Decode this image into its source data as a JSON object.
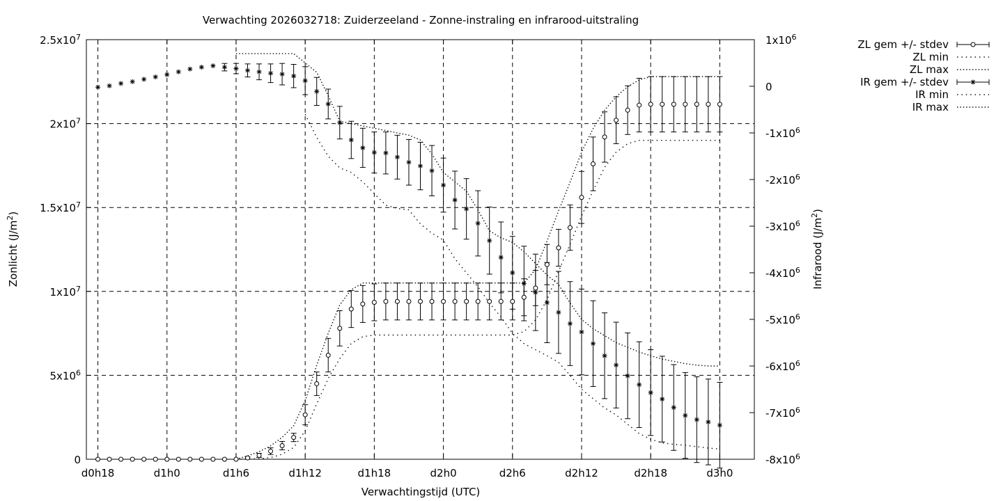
{
  "chart_data": {
    "type": "scatter",
    "title": "Verwachting 2026032718: Zuiderzeeland - Zonne-instraling en infrarood-uitstraling",
    "xlabel": "Verwachtingstijd (UTC)",
    "ylabel_left": {
      "text": "Zonlicht (J/m",
      "sup": "2",
      "tail": ")"
    },
    "ylabel_right": {
      "text": "Infrarood (J/m",
      "sup": "2",
      "tail": ")"
    },
    "x_range_hours": [
      -1,
      57
    ],
    "ylim_left": [
      0,
      25000000
    ],
    "ylim_right": [
      -8000000,
      1000000
    ],
    "grid": true,
    "legend_placement": "outside-top-right",
    "x_ticks": [
      {
        "value": 0,
        "label": "d0h18"
      },
      {
        "value": 6,
        "label": "d1h0"
      },
      {
        "value": 12,
        "label": "d1h6"
      },
      {
        "value": 18,
        "label": "d1h12"
      },
      {
        "value": 24,
        "label": "d1h18"
      },
      {
        "value": 30,
        "label": "d2h0"
      },
      {
        "value": 36,
        "label": "d2h6"
      },
      {
        "value": 42,
        "label": "d2h12"
      },
      {
        "value": 48,
        "label": "d2h18"
      },
      {
        "value": 54,
        "label": "d3h0"
      }
    ],
    "y_ticks_left": [
      {
        "value": 0,
        "mant": "0",
        "exp": ""
      },
      {
        "value": 5000000,
        "mant": "5x10",
        "exp": "6"
      },
      {
        "value": 10000000,
        "mant": "1x10",
        "exp": "7"
      },
      {
        "value": 15000000,
        "mant": "1.5x10",
        "exp": "7"
      },
      {
        "value": 20000000,
        "mant": "2x10",
        "exp": "7"
      },
      {
        "value": 25000000,
        "mant": "2.5x10",
        "exp": "7"
      }
    ],
    "y_ticks_right": [
      {
        "value": 1000000,
        "mant": "1x10",
        "exp": "6"
      },
      {
        "value": 0,
        "mant": "0",
        "exp": ""
      },
      {
        "value": -1000000,
        "mant": "-1x10",
        "exp": "6"
      },
      {
        "value": -2000000,
        "mant": "-2x10",
        "exp": "6"
      },
      {
        "value": -3000000,
        "mant": "-3x10",
        "exp": "6"
      },
      {
        "value": -4000000,
        "mant": "-4x10",
        "exp": "6"
      },
      {
        "value": -5000000,
        "mant": "-5x10",
        "exp": "6"
      },
      {
        "value": -6000000,
        "mant": "-6x10",
        "exp": "6"
      },
      {
        "value": -7000000,
        "mant": "-7x10",
        "exp": "6"
      },
      {
        "value": -8000000,
        "mant": "-8x10",
        "exp": "6"
      }
    ],
    "x": [
      0,
      1,
      2,
      3,
      4,
      5,
      6,
      7,
      8,
      9,
      10,
      11,
      12,
      13,
      14,
      15,
      16,
      17,
      18,
      19,
      20,
      21,
      22,
      23,
      24,
      25,
      26,
      27,
      28,
      29,
      30,
      31,
      32,
      33,
      34,
      35,
      36,
      37,
      38,
      39,
      40,
      41,
      42,
      43,
      44,
      45,
      46,
      47,
      48,
      49,
      50,
      51,
      52,
      53,
      54
    ],
    "series": [
      {
        "name": "ZL gem +/- stdev",
        "axis": "left",
        "marker": "circle",
        "values": [
          0,
          0,
          0,
          0,
          0,
          0,
          0,
          0,
          0,
          0,
          0,
          0,
          0,
          80000,
          230000,
          480000,
          810000,
          1300000,
          2650000,
          4500000,
          6200000,
          7800000,
          8950000,
          9250000,
          9350000,
          9400000,
          9400000,
          9400000,
          9400000,
          9400000,
          9400000,
          9400000,
          9400000,
          9400000,
          9400000,
          9400000,
          9400000,
          9650000,
          10200000,
          11600000,
          12600000,
          13800000,
          15600000,
          17600000,
          19200000,
          20200000,
          20800000,
          21100000,
          21150000,
          21150000,
          21150000,
          21150000,
          21150000,
          21150000,
          21150000
        ],
        "stdev": [
          0,
          0,
          0,
          0,
          0,
          0,
          0,
          0,
          0,
          0,
          0,
          0,
          0,
          60000,
          120000,
          200000,
          250000,
          250000,
          600000,
          700000,
          1000000,
          1050000,
          1100000,
          1100000,
          1100000,
          1100000,
          1100000,
          1100000,
          1100000,
          1100000,
          1100000,
          1100000,
          1100000,
          1100000,
          1100000,
          1100000,
          1100000,
          1100000,
          1050000,
          1200000,
          1100000,
          1350000,
          1550000,
          1600000,
          1500000,
          1400000,
          1450000,
          1600000,
          1650000,
          1650000,
          1650000,
          1650000,
          1650000,
          1650000,
          1650000
        ]
      },
      {
        "name": "ZL min",
        "axis": "left",
        "line": "dotted",
        "values": [
          null,
          null,
          null,
          null,
          null,
          null,
          null,
          null,
          null,
          null,
          null,
          null,
          0,
          10000,
          30000,
          100000,
          300000,
          700000,
          1700000,
          3300000,
          4800000,
          6000000,
          6900000,
          7300000,
          7400000,
          7400000,
          7400000,
          7400000,
          7400000,
          7400000,
          7400000,
          7400000,
          7400000,
          7400000,
          7400000,
          7400000,
          7400000,
          7600000,
          8300000,
          9500000,
          11200000,
          12800000,
          14500000,
          16000000,
          17400000,
          18300000,
          18800000,
          19000000,
          19000000,
          19000000,
          19000000,
          19000000,
          19000000,
          19000000,
          19000000
        ]
      },
      {
        "name": "ZL max",
        "axis": "left",
        "line": "dotted",
        "values": [
          null,
          null,
          null,
          null,
          null,
          null,
          null,
          null,
          null,
          null,
          null,
          null,
          0,
          200000,
          450000,
          800000,
          1300000,
          2000000,
          3500000,
          5600000,
          7500000,
          9200000,
          10100000,
          10500000,
          10500000,
          10500000,
          10500000,
          10500000,
          10500000,
          10500000,
          10500000,
          10500000,
          10500000,
          10500000,
          10500000,
          10500000,
          10500000,
          10500000,
          11300000,
          13000000,
          14800000,
          16500000,
          18300000,
          19700000,
          20800000,
          21600000,
          22200000,
          22600000,
          22800000,
          22800000,
          22800000,
          22800000,
          22800000,
          22800000,
          22800000
        ]
      },
      {
        "name": "IR gem +/- stdev",
        "axis": "right",
        "marker": "asterisk",
        "values": [
          -20000,
          10000,
          60000,
          100000,
          150000,
          200000,
          250000,
          310000,
          370000,
          410000,
          440000,
          410000,
          380000,
          340000,
          310000,
          280000,
          260000,
          220000,
          120000,
          -110000,
          -380000,
          -780000,
          -1150000,
          -1320000,
          -1420000,
          -1430000,
          -1520000,
          -1630000,
          -1710000,
          -1810000,
          -2120000,
          -2440000,
          -2630000,
          -2940000,
          -3310000,
          -3670000,
          -4000000,
          -4230000,
          -4420000,
          -4640000,
          -4850000,
          -5090000,
          -5270000,
          -5520000,
          -5780000,
          -5980000,
          -6210000,
          -6400000,
          -6570000,
          -6710000,
          -6890000,
          -7060000,
          -7150000,
          -7200000,
          -7270000
        ],
        "stdev": [
          0,
          0,
          0,
          0,
          0,
          0,
          0,
          0,
          0,
          0,
          0,
          80000,
          110000,
          140000,
          170000,
          200000,
          230000,
          250000,
          300000,
          300000,
          320000,
          350000,
          400000,
          420000,
          440000,
          450000,
          470000,
          490000,
          510000,
          540000,
          580000,
          620000,
          650000,
          700000,
          720000,
          760000,
          780000,
          800000,
          820000,
          860000,
          880000,
          900000,
          920000,
          920000,
          920000,
          920000,
          920000,
          920000,
          920000,
          920000,
          920000,
          920000,
          920000,
          920000,
          920000
        ]
      },
      {
        "name": "IR min",
        "axis": "right",
        "line": "dotted",
        "values": [
          null,
          null,
          null,
          null,
          null,
          null,
          null,
          null,
          null,
          null,
          null,
          null,
          null,
          null,
          null,
          null,
          null,
          null,
          -600000,
          -1100000,
          -1500000,
          -1750000,
          -1850000,
          -2050000,
          -2300000,
          -2550000,
          -2620000,
          -2650000,
          -2950000,
          -3150000,
          -3300000,
          -3700000,
          -4000000,
          -4300000,
          -4650000,
          -4950000,
          -5300000,
          -5520000,
          -5650000,
          -5780000,
          -5920000,
          -6200000,
          -6500000,
          -6700000,
          -6900000,
          -7050000,
          -7250000,
          -7450000,
          -7570000,
          -7650000,
          -7680000,
          -7700000,
          -7730000,
          -7760000,
          -7780000
        ]
      },
      {
        "name": "IR max",
        "axis": "right",
        "line": "dotted",
        "values": [
          null,
          null,
          null,
          null,
          null,
          null,
          null,
          null,
          null,
          null,
          null,
          null,
          700000,
          700000,
          700000,
          700000,
          700000,
          700000,
          500000,
          300000,
          -200000,
          -750000,
          -800000,
          -850000,
          -900000,
          -950000,
          -1000000,
          -1050000,
          -1150000,
          -1450000,
          -1850000,
          -2050000,
          -2250000,
          -2650000,
          -3100000,
          -3250000,
          -3350000,
          -3550000,
          -3800000,
          -4050000,
          -4250000,
          -4650000,
          -5000000,
          -5200000,
          -5350000,
          -5500000,
          -5600000,
          -5700000,
          -5780000,
          -5850000,
          -5900000,
          -5950000,
          -5980000,
          -6000000,
          -6000000
        ]
      }
    ],
    "legend": [
      {
        "label": "ZL gem +/- stdev",
        "style": "errorbar-circle"
      },
      {
        "label": "ZL min",
        "style": "dotted-wide"
      },
      {
        "label": "ZL max",
        "style": "dotted"
      },
      {
        "label": "IR gem +/- stdev",
        "style": "errorbar-asterisk"
      },
      {
        "label": "IR min",
        "style": "dotted-wide"
      },
      {
        "label": "IR max",
        "style": "dotted"
      }
    ]
  }
}
